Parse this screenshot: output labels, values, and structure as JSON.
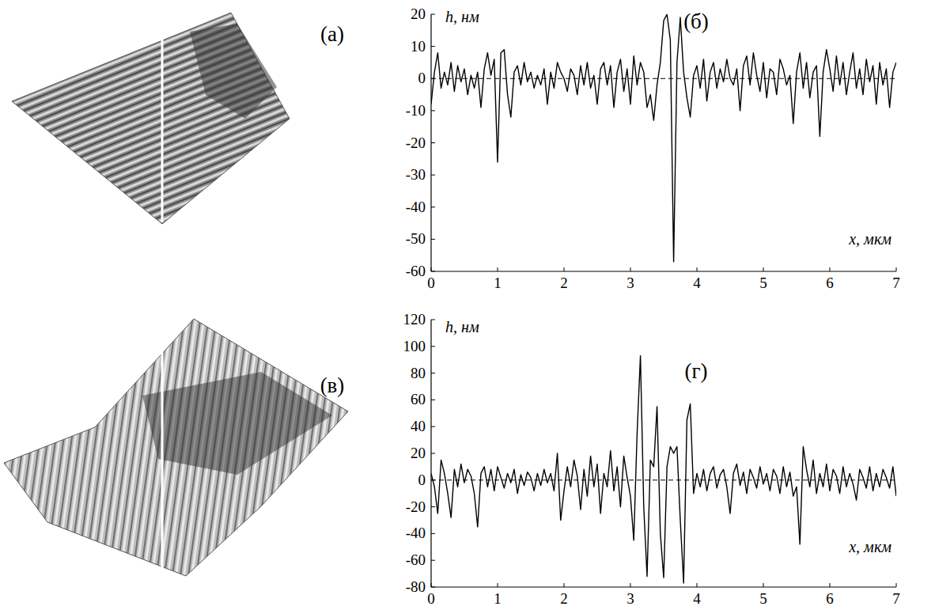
{
  "images": [
    {
      "label": "(а)"
    },
    {
      "label": "(в)"
    }
  ],
  "chart_data": [
    {
      "type": "line",
      "title": "(б)",
      "y_label": "h, нм",
      "x_label": "x, мкм",
      "xlim": [
        0,
        7
      ],
      "xticks": [
        0,
        1,
        2,
        3,
        4,
        5,
        6,
        7
      ],
      "ylim": [
        -60,
        20
      ],
      "yticks": [
        -60,
        -50,
        -40,
        -30,
        -20,
        -10,
        0,
        10,
        20
      ],
      "hline": 0,
      "grid": false,
      "color": "#000000",
      "line_style": "solid",
      "x": [
        0,
        0.05,
        0.1,
        0.15,
        0.2,
        0.25,
        0.3,
        0.35,
        0.4,
        0.45,
        0.5,
        0.55,
        0.6,
        0.65,
        0.7,
        0.75,
        0.8,
        0.85,
        0.9,
        0.95,
        1,
        1.05,
        1.1,
        1.15,
        1.2,
        1.25,
        1.3,
        1.35,
        1.4,
        1.45,
        1.5,
        1.55,
        1.6,
        1.65,
        1.7,
        1.75,
        1.8,
        1.85,
        1.9,
        1.95,
        2,
        2.05,
        2.1,
        2.15,
        2.2,
        2.25,
        2.3,
        2.35,
        2.4,
        2.45,
        2.5,
        2.55,
        2.6,
        2.65,
        2.7,
        2.75,
        2.8,
        2.85,
        2.9,
        2.95,
        3,
        3.05,
        3.1,
        3.15,
        3.2,
        3.25,
        3.3,
        3.35,
        3.4,
        3.45,
        3.5,
        3.55,
        3.6,
        3.65,
        3.7,
        3.75,
        3.8,
        3.85,
        3.9,
        3.95,
        4,
        4.05,
        4.1,
        4.15,
        4.2,
        4.25,
        4.3,
        4.35,
        4.4,
        4.45,
        4.5,
        4.55,
        4.6,
        4.65,
        4.7,
        4.75,
        4.8,
        4.85,
        4.9,
        4.95,
        5,
        5.05,
        5.1,
        5.15,
        5.2,
        5.25,
        5.3,
        5.35,
        5.4,
        5.45,
        5.5,
        5.55,
        5.6,
        5.65,
        5.7,
        5.75,
        5.8,
        5.85,
        5.9,
        5.95,
        6,
        6.05,
        6.1,
        6.15,
        6.2,
        6.25,
        6.3,
        6.35,
        6.4,
        6.45,
        6.5,
        6.55,
        6.6,
        6.65,
        6.7,
        6.75,
        6.8,
        6.85,
        6.9,
        6.95,
        7
      ],
      "values": [
        -8,
        2,
        8,
        -3,
        2,
        -2,
        5,
        -4,
        4,
        -1,
        3,
        -5,
        1,
        -3,
        2,
        -9,
        3,
        8,
        1,
        6,
        -26,
        8,
        9,
        -5,
        -12,
        2,
        4,
        -2,
        5,
        -1,
        2,
        -3,
        1,
        -2,
        3,
        -8,
        2,
        -3,
        5,
        2,
        0,
        -4,
        3,
        1,
        -5,
        4,
        -2,
        5,
        -3,
        1,
        -8,
        3,
        5,
        -2,
        4,
        -9,
        2,
        6,
        -4,
        3,
        -8,
        7,
        -2,
        5,
        2,
        -9,
        -5,
        -13,
        -2,
        5,
        18,
        20,
        12,
        -57,
        5,
        19,
        2,
        -6,
        -12,
        1,
        4,
        -3,
        6,
        -7,
        2,
        5,
        -3,
        3,
        -1,
        6,
        0,
        -2,
        3,
        -10,
        4,
        7,
        -2,
        8,
        1,
        -4,
        5,
        -6,
        3,
        2,
        -5,
        6,
        3,
        -2,
        1,
        -14,
        2,
        8,
        -3,
        5,
        -6,
        2,
        4,
        -18,
        2,
        9,
        3,
        -4,
        7,
        -2,
        5,
        -5,
        2,
        8,
        -3,
        3,
        -5,
        6,
        -1,
        4,
        -8,
        5,
        -2,
        3,
        -9,
        2,
        5
      ]
    },
    {
      "type": "line",
      "title": "(г)",
      "y_label": "h, нм",
      "x_label": "x, мкм",
      "xlim": [
        0,
        7
      ],
      "xticks": [
        0,
        1,
        2,
        3,
        4,
        5,
        6,
        7
      ],
      "ylim": [
        -80,
        120
      ],
      "yticks": [
        -80,
        -60,
        -40,
        -20,
        0,
        20,
        40,
        60,
        80,
        100,
        120
      ],
      "hline": 0,
      "grid": false,
      "color": "#000000",
      "line_style": "solid",
      "x": [
        0,
        0.05,
        0.1,
        0.15,
        0.2,
        0.25,
        0.3,
        0.35,
        0.4,
        0.45,
        0.5,
        0.55,
        0.6,
        0.65,
        0.7,
        0.75,
        0.8,
        0.85,
        0.9,
        0.95,
        1,
        1.05,
        1.1,
        1.15,
        1.2,
        1.25,
        1.3,
        1.35,
        1.4,
        1.45,
        1.5,
        1.55,
        1.6,
        1.65,
        1.7,
        1.75,
        1.8,
        1.85,
        1.9,
        1.95,
        2,
        2.05,
        2.1,
        2.15,
        2.2,
        2.25,
        2.3,
        2.35,
        2.4,
        2.45,
        2.5,
        2.55,
        2.6,
        2.65,
        2.7,
        2.75,
        2.8,
        2.85,
        2.9,
        2.95,
        3,
        3.05,
        3.1,
        3.15,
        3.2,
        3.25,
        3.3,
        3.35,
        3.4,
        3.45,
        3.5,
        3.55,
        3.6,
        3.65,
        3.7,
        3.75,
        3.8,
        3.85,
        3.9,
        3.95,
        4,
        4.05,
        4.1,
        4.15,
        4.2,
        4.25,
        4.3,
        4.35,
        4.4,
        4.45,
        4.5,
        4.55,
        4.6,
        4.65,
        4.7,
        4.75,
        4.8,
        4.85,
        4.9,
        4.95,
        5,
        5.05,
        5.1,
        5.15,
        5.2,
        5.25,
        5.3,
        5.35,
        5.4,
        5.45,
        5.5,
        5.55,
        5.6,
        5.65,
        5.7,
        5.75,
        5.8,
        5.85,
        5.9,
        5.95,
        6,
        6.05,
        6.1,
        6.15,
        6.2,
        6.25,
        6.3,
        6.35,
        6.4,
        6.45,
        6.5,
        6.55,
        6.6,
        6.65,
        6.7,
        6.75,
        6.8,
        6.85,
        6.9,
        6.95,
        7
      ],
      "values": [
        5,
        -5,
        -25,
        15,
        5,
        -10,
        -28,
        8,
        -5,
        12,
        -2,
        8,
        3,
        -10,
        -35,
        5,
        10,
        -5,
        8,
        -8,
        10,
        2,
        -6,
        5,
        -2,
        8,
        -10,
        4,
        -4,
        6,
        2,
        -8,
        5,
        -4,
        8,
        -2,
        5,
        -8,
        20,
        -30,
        -8,
        10,
        -5,
        15,
        3,
        -22,
        8,
        -12,
        18,
        -5,
        12,
        -25,
        5,
        -5,
        22,
        -8,
        10,
        -20,
        18,
        2,
        -12,
        -45,
        35,
        93,
        -20,
        -72,
        15,
        10,
        55,
        -40,
        -73,
        10,
        25,
        20,
        25,
        -30,
        -77,
        45,
        57,
        -10,
        5,
        -5,
        8,
        -8,
        5,
        10,
        -6,
        4,
        8,
        -5,
        -25,
        5,
        12,
        -4,
        6,
        -10,
        8,
        2,
        -6,
        10,
        -3,
        5,
        -8,
        8,
        3,
        -10,
        10,
        -5,
        6,
        -12,
        -5,
        -48,
        25,
        8,
        -5,
        15,
        -10,
        5,
        -5,
        12,
        -8,
        8,
        3,
        -10,
        10,
        -5,
        5,
        -3,
        -15,
        8,
        2,
        -6,
        10,
        -8,
        5,
        -5,
        8,
        2,
        -6,
        10,
        -12
      ]
    }
  ]
}
